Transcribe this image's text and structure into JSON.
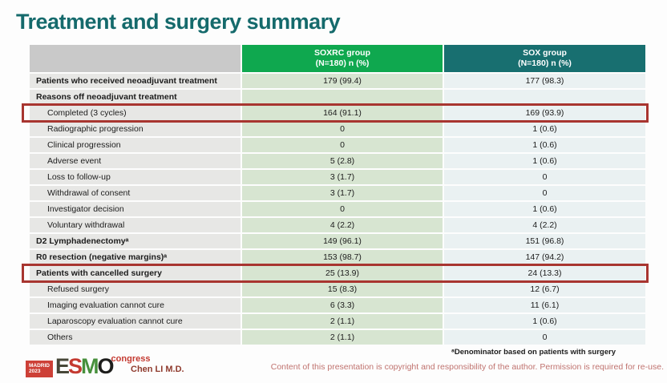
{
  "title": "Treatment and surgery summary",
  "table": {
    "columns": {
      "soxrc": {
        "name": "SOXRC group",
        "sub": "(N=180)  n (%)"
      },
      "sox": {
        "name": "SOX group",
        "sub": "(N=180)  n (%)"
      }
    },
    "rows": [
      {
        "label": "Patients who received neoadjuvant treatment",
        "soxrc": "179 (99.4)",
        "sox": "177 (98.3)",
        "style": "bold",
        "highlight": false
      },
      {
        "label": "Reasons off neoadjuvant treatment",
        "soxrc": "",
        "sox": "",
        "style": "bold",
        "highlight": false
      },
      {
        "label": "Completed (3 cycles)",
        "soxrc": "164 (91.1)",
        "sox": "169 (93.9)",
        "style": "indent",
        "highlight": true
      },
      {
        "label": "Radiographic progression",
        "soxrc": "0",
        "sox": "1 (0.6)",
        "style": "indent",
        "highlight": false
      },
      {
        "label": "Clinical progression",
        "soxrc": "0",
        "sox": "1 (0.6)",
        "style": "indent",
        "highlight": false
      },
      {
        "label": "Adverse event",
        "soxrc": "5 (2.8)",
        "sox": "1 (0.6)",
        "style": "indent",
        "highlight": false
      },
      {
        "label": "Loss to follow-up",
        "soxrc": "3 (1.7)",
        "sox": "0",
        "style": "indent",
        "highlight": false
      },
      {
        "label": "Withdrawal of consent",
        "soxrc": "3 (1.7)",
        "sox": "0",
        "style": "indent",
        "highlight": false
      },
      {
        "label": "Investigator decision",
        "soxrc": "0",
        "sox": "1 (0.6)",
        "style": "indent",
        "highlight": false
      },
      {
        "label": "Voluntary withdrawal",
        "soxrc": "4 (2.2)",
        "sox": "4 (2.2)",
        "style": "indent",
        "highlight": false
      },
      {
        "label": "D2 Lymphadenectomyᵃ",
        "soxrc": "149 (96.1)",
        "sox": "151 (96.8)",
        "style": "bold",
        "highlight": false
      },
      {
        "label": "R0 resection (negative margins)ᵃ",
        "soxrc": "153 (98.7)",
        "sox": "147 (94.2)",
        "style": "bold",
        "highlight": false
      },
      {
        "label": "Patients with cancelled surgery",
        "soxrc": "25 (13.9)",
        "sox": "24 (13.3)",
        "style": "bold",
        "highlight": true
      },
      {
        "label": "Refused surgery",
        "soxrc": "15 (8.3)",
        "sox": "12 (6.7)",
        "style": "indent",
        "highlight": false
      },
      {
        "label": "Imaging evaluation cannot cure",
        "soxrc": "6 (3.3)",
        "sox": "11 (6.1)",
        "style": "indent",
        "highlight": false
      },
      {
        "label": "Laparoscopy evaluation cannot cure",
        "soxrc": "2 (1.1)",
        "sox": "1 (0.6)",
        "style": "indent",
        "highlight": false
      },
      {
        "label": "Others",
        "soxrc": "2 (1.1)",
        "sox": "0",
        "style": "indent",
        "highlight": false
      }
    ]
  },
  "footer": {
    "logo": {
      "venue": "MADRID",
      "year": "2023",
      "letters": {
        "e": "E",
        "s": "S",
        "m": "M",
        "o": "O"
      },
      "congress": "congress"
    },
    "author": "Chen LI M.D.",
    "footnote": "ᵃDenominator based on patients with surgery",
    "copyright": "Content of this presentation is copyright and responsibility of the author.  Permission is required for re-use."
  },
  "colors": {
    "title": "#156a6c",
    "soxrc_header": "#0fa84f",
    "sox_header": "#186f70",
    "label_cell": "#e7e7e5",
    "soxrc_cell": "#d7e5d1",
    "sox_cell": "#eaf1f2",
    "highlight_border": "#a83530"
  }
}
